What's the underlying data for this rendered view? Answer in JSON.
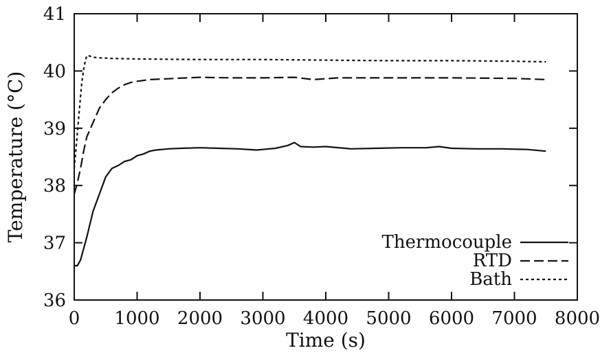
{
  "chart_data": {
    "type": "line",
    "xlabel": "Time (s)",
    "ylabel": "Temperature (°C)",
    "xlim": [
      0,
      8000
    ],
    "ylim": [
      36,
      41
    ],
    "xticks": [
      "0",
      "1000",
      "2000",
      "3000",
      "4000",
      "5000",
      "6000",
      "7000",
      "8000"
    ],
    "yticks": [
      "36",
      "37",
      "38",
      "39",
      "40",
      "41"
    ],
    "grid": false,
    "legend_position": "bottom-right",
    "series": [
      {
        "name": "Thermocouple",
        "style": "solid",
        "x": [
          0,
          50,
          100,
          200,
          300,
          400,
          500,
          600,
          700,
          800,
          900,
          1000,
          1100,
          1200,
          1300,
          1500,
          1700,
          2000,
          2300,
          2600,
          2900,
          3200,
          3400,
          3500,
          3600,
          3800,
          4000,
          4400,
          4800,
          5200,
          5600,
          5800,
          6000,
          6400,
          6800,
          7200,
          7500
        ],
        "y": [
          36.6,
          36.6,
          36.7,
          37.1,
          37.55,
          37.85,
          38.15,
          38.3,
          38.35,
          38.42,
          38.45,
          38.52,
          38.55,
          38.6,
          38.62,
          38.64,
          38.65,
          38.66,
          38.65,
          38.64,
          38.62,
          38.65,
          38.7,
          38.75,
          38.68,
          38.67,
          38.68,
          38.64,
          38.65,
          38.66,
          38.66,
          38.68,
          38.65,
          38.64,
          38.64,
          38.63,
          38.6
        ]
      },
      {
        "name": "RTD",
        "style": "dashed",
        "x": [
          0,
          50,
          100,
          150,
          200,
          300,
          400,
          500,
          600,
          700,
          800,
          900,
          1000,
          1200,
          1400,
          1600,
          2000,
          2500,
          3000,
          3500,
          3800,
          4200,
          5000,
          6000,
          7000,
          7500
        ],
        "y": [
          37.85,
          38.05,
          38.3,
          38.6,
          38.85,
          39.1,
          39.35,
          39.5,
          39.62,
          39.7,
          39.76,
          39.8,
          39.82,
          39.85,
          39.86,
          39.87,
          39.89,
          39.88,
          39.88,
          39.89,
          39.85,
          39.88,
          39.88,
          39.88,
          39.87,
          39.85
        ]
      },
      {
        "name": "Bath",
        "style": "dotted",
        "x": [
          0,
          40,
          80,
          120,
          160,
          200,
          250,
          300,
          400,
          600,
          1000,
          2000,
          3000,
          4000,
          5000,
          6000,
          7000,
          7500
        ],
        "y": [
          38.3,
          38.8,
          39.3,
          39.8,
          40.1,
          40.27,
          40.26,
          40.24,
          40.23,
          40.22,
          40.21,
          40.2,
          40.2,
          40.19,
          40.18,
          40.18,
          40.17,
          40.16
        ]
      }
    ]
  }
}
